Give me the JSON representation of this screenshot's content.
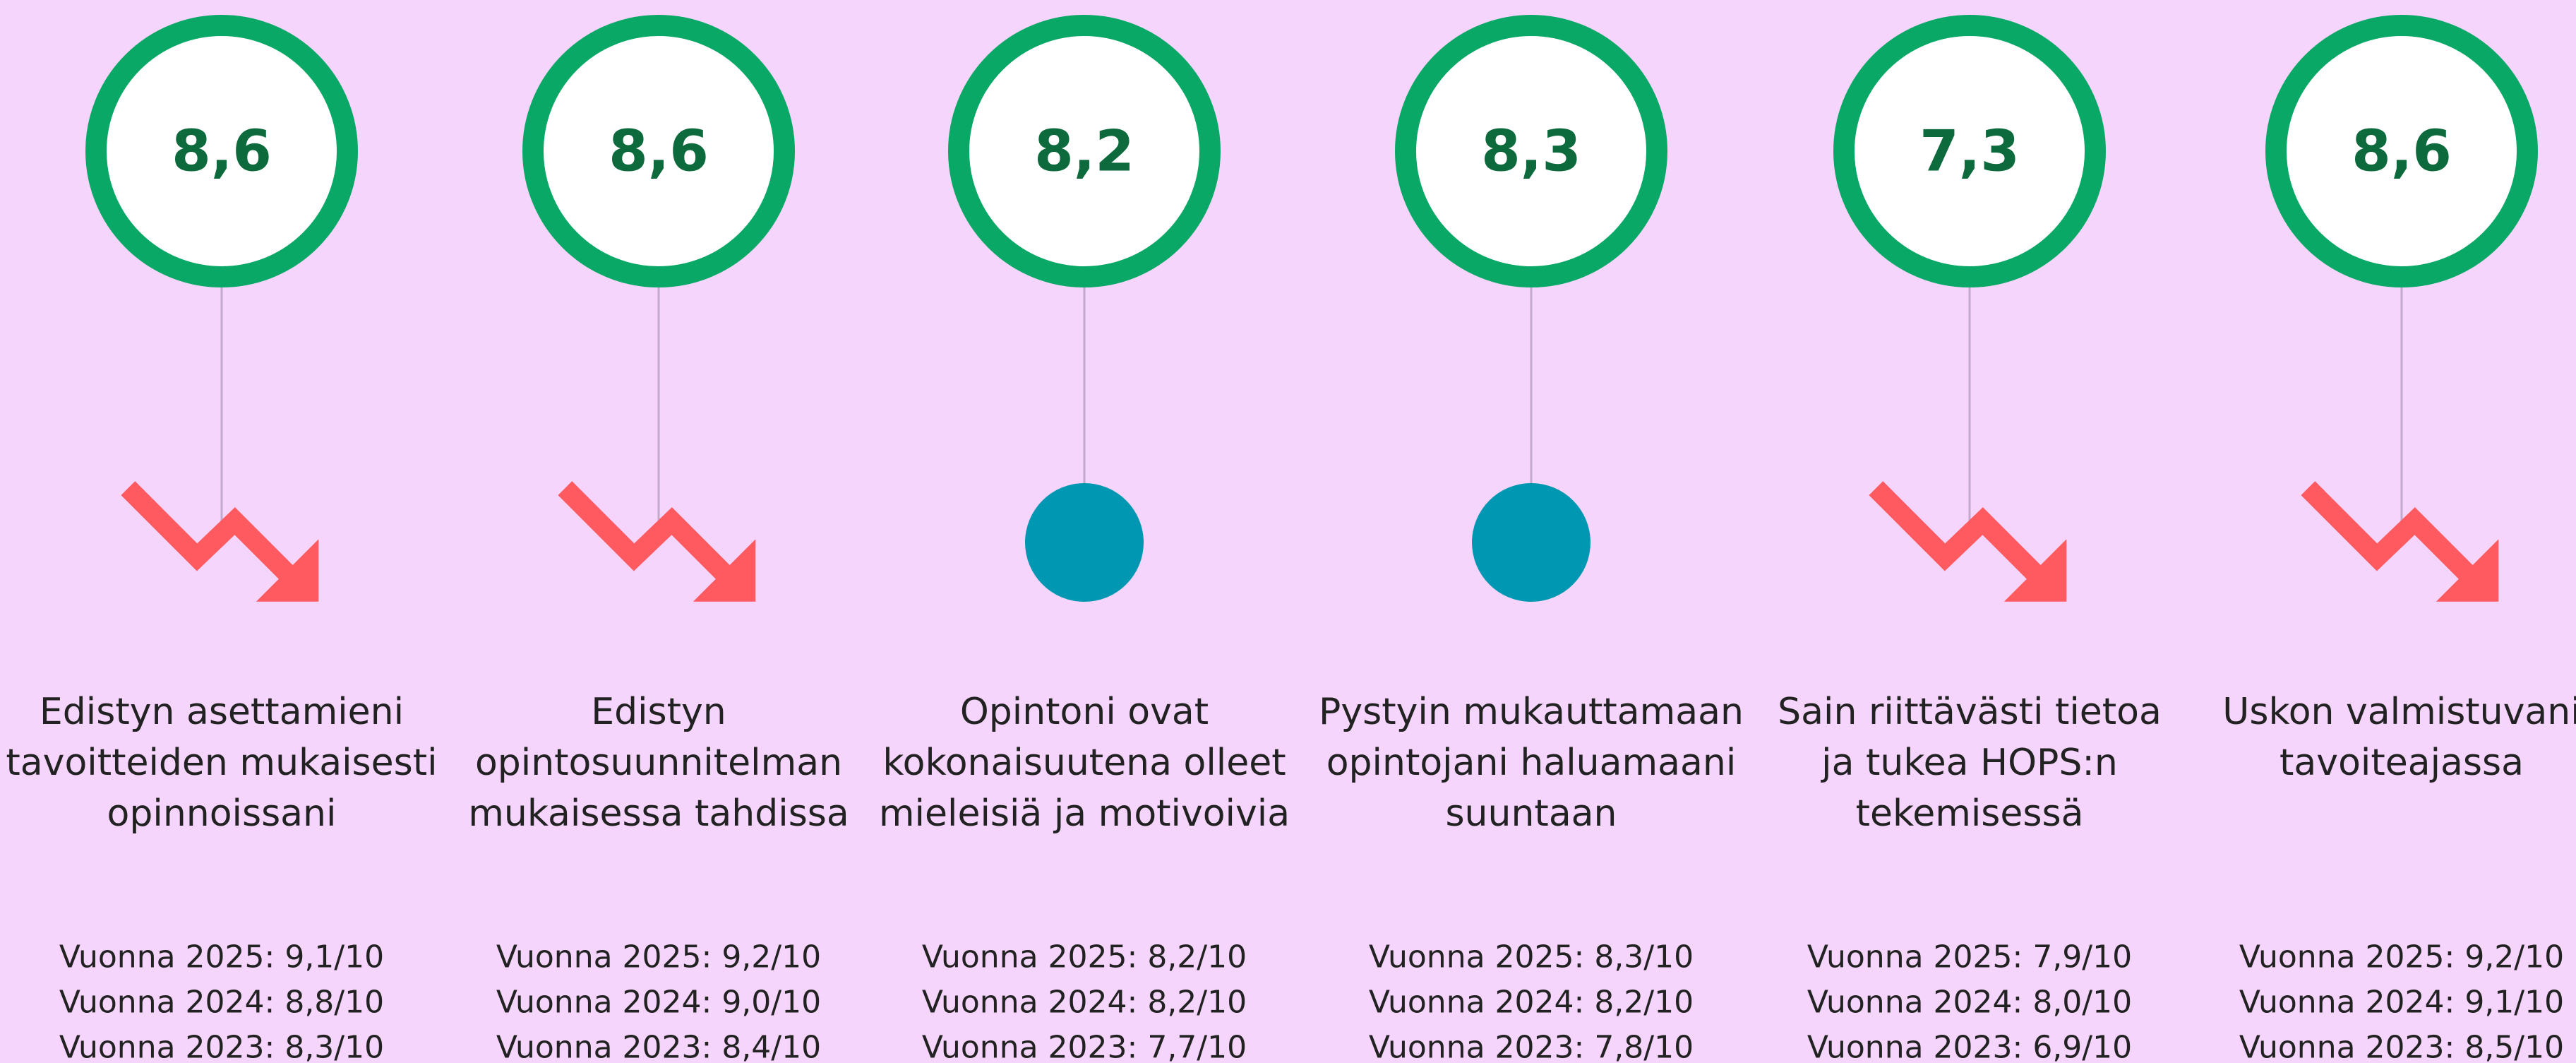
{
  "items": [
    {
      "score": "8,6",
      "trend": "down",
      "label": [
        "Edistyn asettamieni",
        "tavoitteiden mukaisesti",
        "opinnoissani"
      ],
      "history": [
        "Vuonna 2025: 9,1/10",
        "Vuonna 2024: 8,8/10",
        "Vuonna 2023: 8,3/10"
      ]
    },
    {
      "score": "8,6",
      "trend": "down",
      "label": [
        "Edistyn",
        "opintosuunnitelman",
        "mukaisessa tahdissa"
      ],
      "history": [
        "Vuonna 2025: 9,2/10",
        "Vuonna 2024: 9,0/10",
        "Vuonna 2023: 8,4/10"
      ]
    },
    {
      "score": "8,2",
      "trend": "flat",
      "label": [
        "Opintoni ovat",
        "kokonaisuutena olleet",
        "mieleisiä ja motivoivia"
      ],
      "history": [
        "Vuonna 2025: 8,2/10",
        "Vuonna 2024: 8,2/10",
        "Vuonna 2023: 7,7/10"
      ]
    },
    {
      "score": "8,3",
      "trend": "flat",
      "label": [
        "Pystyin mukauttamaan",
        "opintojani haluamaani",
        "suuntaan"
      ],
      "history": [
        "Vuonna 2025: 8,3/10",
        "Vuonna 2024: 8,2/10",
        "Vuonna 2023: 7,8/10"
      ]
    },
    {
      "score": "7,3",
      "trend": "down",
      "label": [
        "Sain riittävästi tietoa",
        "ja tukea HOPS:n",
        "tekemisessä"
      ],
      "history": [
        "Vuonna 2025: 7,9/10",
        "Vuonna 2024: 8,0/10",
        "Vuonna 2023: 6,9/10"
      ]
    },
    {
      "score": "8,6",
      "trend": "down",
      "label": [
        "Uskon valmistuvani",
        "tavoiteajassa"
      ],
      "history": [
        "Vuonna 2025: 9,2/10",
        "Vuonna 2024: 9,1/10",
        "Vuonna 2023: 8,5/10"
      ]
    }
  ]
}
